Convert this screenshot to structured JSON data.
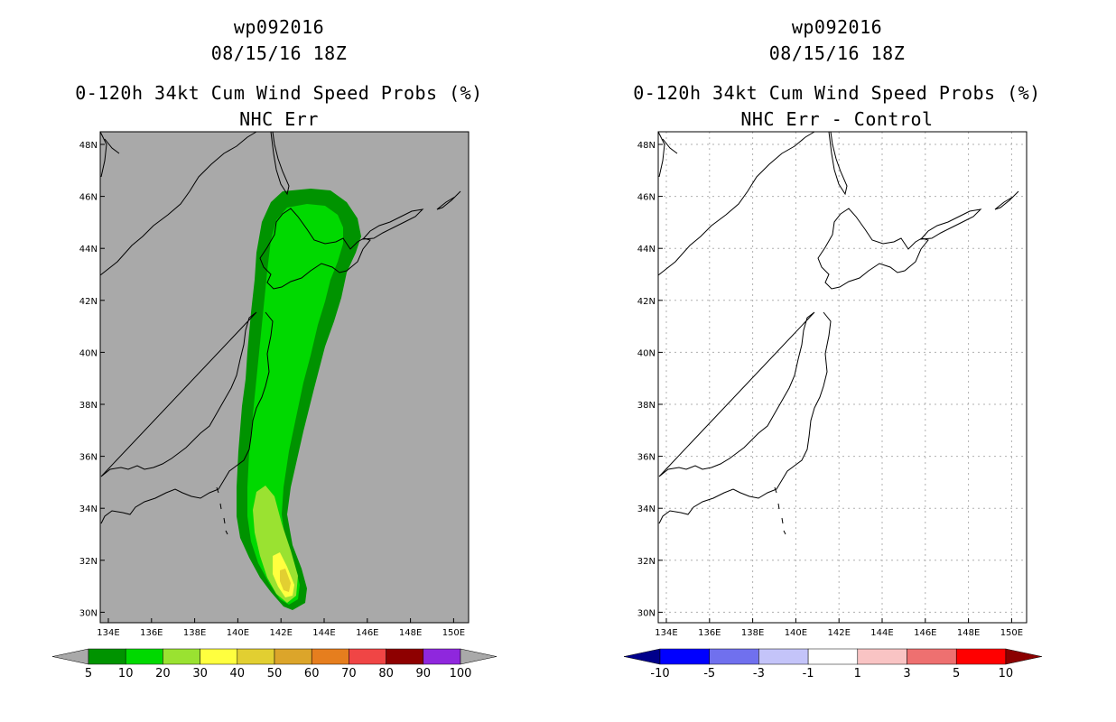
{
  "panels": [
    {
      "storm_id": "wp092016",
      "datetime": "08/15/16 18Z",
      "product": "0-120h 34kt Cum Wind Speed Probs (%)",
      "subtitle": "NHC Err",
      "background_color": "#a9a9a9",
      "gridlines": false,
      "lon_ticks": [
        "134E",
        "136E",
        "138E",
        "140E",
        "142E",
        "144E",
        "146E",
        "148E",
        "150E"
      ],
      "lat_ticks": [
        "48N",
        "46N",
        "44N",
        "42N",
        "40N",
        "38N",
        "36N",
        "34N",
        "32N",
        "30N"
      ],
      "colorbar": {
        "colors": [
          "#009300",
          "#00d900",
          "#9ae231",
          "#ffff3f",
          "#e2cf31",
          "#dca52a",
          "#e67e1e",
          "#f04545",
          "#8e0000",
          "#8f27dd"
        ],
        "under_color": "#a9a9a9",
        "over_color": "#a9a9a9",
        "labels": [
          "5",
          "10",
          "20",
          "30",
          "40",
          "50",
          "60",
          "70",
          "80",
          "90",
          "100"
        ]
      },
      "probability_swath": [
        {
          "level": "5%",
          "color": "#009300"
        },
        {
          "level": "10%",
          "color": "#00d900"
        },
        {
          "level": "20%",
          "color": "#9ae231"
        },
        {
          "level": "30%",
          "color": "#ffff3f"
        },
        {
          "level": "40%",
          "color": "#e2cf31"
        }
      ]
    },
    {
      "storm_id": "wp092016",
      "datetime": "08/15/16 18Z",
      "product": "0-120h 34kt Cum Wind Speed Probs (%)",
      "subtitle": "NHC Err - Control",
      "background_color": "#ffffff",
      "gridlines": true,
      "lon_ticks": [
        "134E",
        "136E",
        "138E",
        "140E",
        "142E",
        "144E",
        "146E",
        "148E",
        "150E"
      ],
      "lat_ticks": [
        "48N",
        "46N",
        "44N",
        "42N",
        "40N",
        "38N",
        "36N",
        "34N",
        "32N",
        "30N"
      ],
      "colorbar": {
        "colors": [
          "#0000ff",
          "#7070ee",
          "#c4c4f9",
          "#ffffff",
          "#f9c4c4",
          "#ee7070",
          "#ff0000"
        ],
        "under_color": "#00008b",
        "over_color": "#8b0000",
        "labels": [
          "-10",
          "-5",
          "-3",
          "-1",
          "1",
          "3",
          "5",
          "10"
        ]
      }
    }
  ]
}
